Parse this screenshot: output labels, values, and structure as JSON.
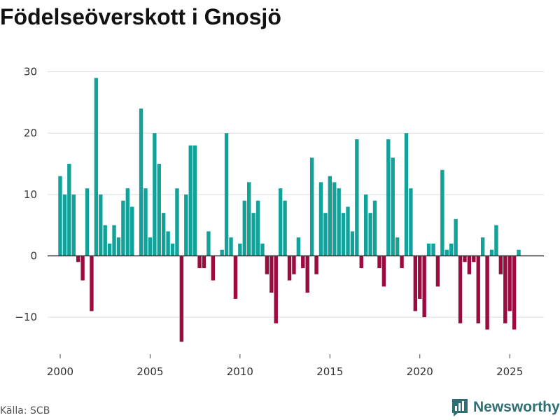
{
  "title": "Födelseöverskott i Gnosjö",
  "source": "Källa: SCB",
  "brand": "Newsworthy",
  "colors": {
    "positive": "#12a29a",
    "negative": "#9b0b3f",
    "grid": "#dcdcdc",
    "zero": "#333333",
    "brand": "#2f6f73"
  },
  "chart_data": {
    "type": "bar",
    "title": "Födelseöverskott i Gnosjö",
    "xlabel": "",
    "ylabel": "",
    "ylim": [
      -15,
      32
    ],
    "yticks": [
      -10,
      0,
      10,
      20,
      30
    ],
    "ytick_labels": [
      "−10",
      "0",
      "10",
      "20",
      "30"
    ],
    "xlim": [
      1999.3,
      2026.9
    ],
    "xticks": [
      2000,
      2005,
      2010,
      2015,
      2020,
      2025
    ],
    "xtick_labels": [
      "2000",
      "2005",
      "2010",
      "2015",
      "2020",
      "2025"
    ],
    "frequency": "quarterly",
    "start": 2000,
    "values": [
      13,
      10,
      15,
      10,
      -1,
      -4,
      11,
      -9,
      29,
      10,
      5,
      2,
      5,
      3,
      9,
      11,
      8,
      0,
      24,
      11,
      3,
      20,
      15,
      7,
      4,
      2,
      11,
      -14,
      10,
      18,
      18,
      -2,
      -2,
      4,
      -4,
      0,
      1,
      20,
      3,
      -7,
      2,
      9,
      12,
      7,
      9,
      2,
      -3,
      -6,
      -11,
      11,
      9,
      -4,
      -3,
      3,
      -2,
      -6,
      16,
      -3,
      12,
      7,
      13,
      12,
      11,
      7,
      8,
      4,
      19,
      -2,
      10,
      7,
      9,
      -2,
      -5,
      19,
      16,
      3,
      -2,
      20,
      11,
      -9,
      -7,
      -10,
      2,
      2,
      -5,
      14,
      1,
      2,
      6,
      -11,
      -1,
      -3,
      -1,
      -11,
      3,
      -12,
      1,
      5,
      -3,
      -11,
      -9,
      -12,
      1
    ]
  }
}
